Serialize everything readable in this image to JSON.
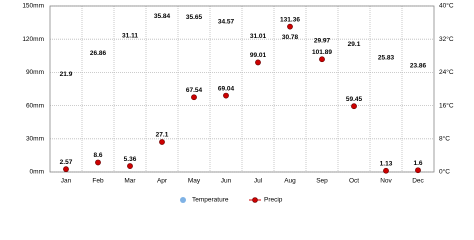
{
  "chart_data": {
    "type": "line",
    "categories": [
      "Jan",
      "Feb",
      "Mar",
      "Apr",
      "May",
      "Jun",
      "Jul",
      "Aug",
      "Sep",
      "Oct",
      "Nov",
      "Dec"
    ],
    "series": [
      {
        "name": "Temperature",
        "color": "#7fb2e5",
        "axis": "y2",
        "values": [
          21.9,
          26.86,
          31.11,
          35.84,
          35.65,
          34.57,
          31.01,
          30.78,
          29.97,
          29.1,
          25.83,
          23.86
        ]
      },
      {
        "name": "Precip",
        "color": "#cc0000",
        "values": [
          2.57,
          8.6,
          5.36,
          27.1,
          67.54,
          69.04,
          99.01,
          131.36,
          101.89,
          59.45,
          1.13,
          1.6
        ]
      }
    ],
    "ylim": [
      0,
      150
    ],
    "yticks": [
      {
        "value": 0,
        "label": "0mm"
      },
      {
        "value": 30,
        "label": "30mm"
      },
      {
        "value": 60,
        "label": "60mm"
      },
      {
        "value": 90,
        "label": "90mm"
      },
      {
        "value": 120,
        "label": "120mm"
      },
      {
        "value": 150,
        "label": "150mm"
      }
    ],
    "y2lim": [
      0,
      40
    ],
    "y2ticks": [
      {
        "value": 0,
        "label": "0°C"
      },
      {
        "value": 8,
        "label": "8°C"
      },
      {
        "value": 16,
        "label": "16°C"
      },
      {
        "value": 24,
        "label": "24°C"
      },
      {
        "value": 32,
        "label": "32°C"
      },
      {
        "value": 40,
        "label": "40°C"
      }
    ],
    "grid": true,
    "legend": "bottom"
  }
}
